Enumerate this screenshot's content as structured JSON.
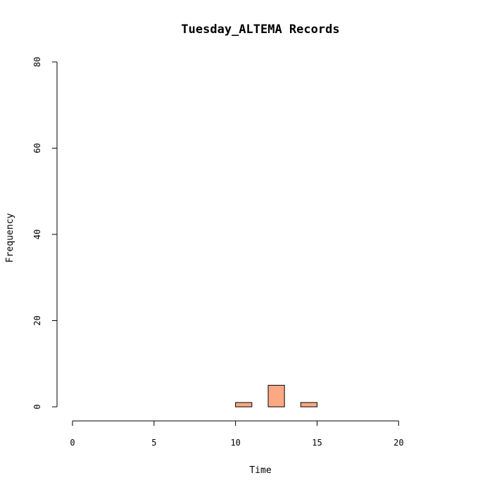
{
  "chart_data": {
    "type": "bar",
    "title": "Tuesday_ALTEMA Records",
    "xlabel": "Time",
    "ylabel": "Frequency",
    "xlim": [
      0,
      24
    ],
    "ylim": [
      0,
      80
    ],
    "x_ticks": [
      0,
      5,
      10,
      15,
      20
    ],
    "y_ticks": [
      0,
      20,
      40,
      60,
      80
    ],
    "bar_color": "#FCA983",
    "bin_width": 1,
    "bins": [
      0,
      1,
      2,
      3,
      4,
      5,
      6,
      7,
      8,
      9,
      10,
      11,
      12,
      13,
      14,
      15,
      16,
      17,
      18,
      19,
      20,
      21,
      22,
      23
    ],
    "values": [
      0,
      0,
      0,
      0,
      0,
      0,
      0,
      0,
      0,
      0,
      1,
      0,
      5,
      0,
      1,
      0,
      0,
      0,
      0,
      0,
      0,
      0,
      0,
      0
    ],
    "grid": false
  }
}
